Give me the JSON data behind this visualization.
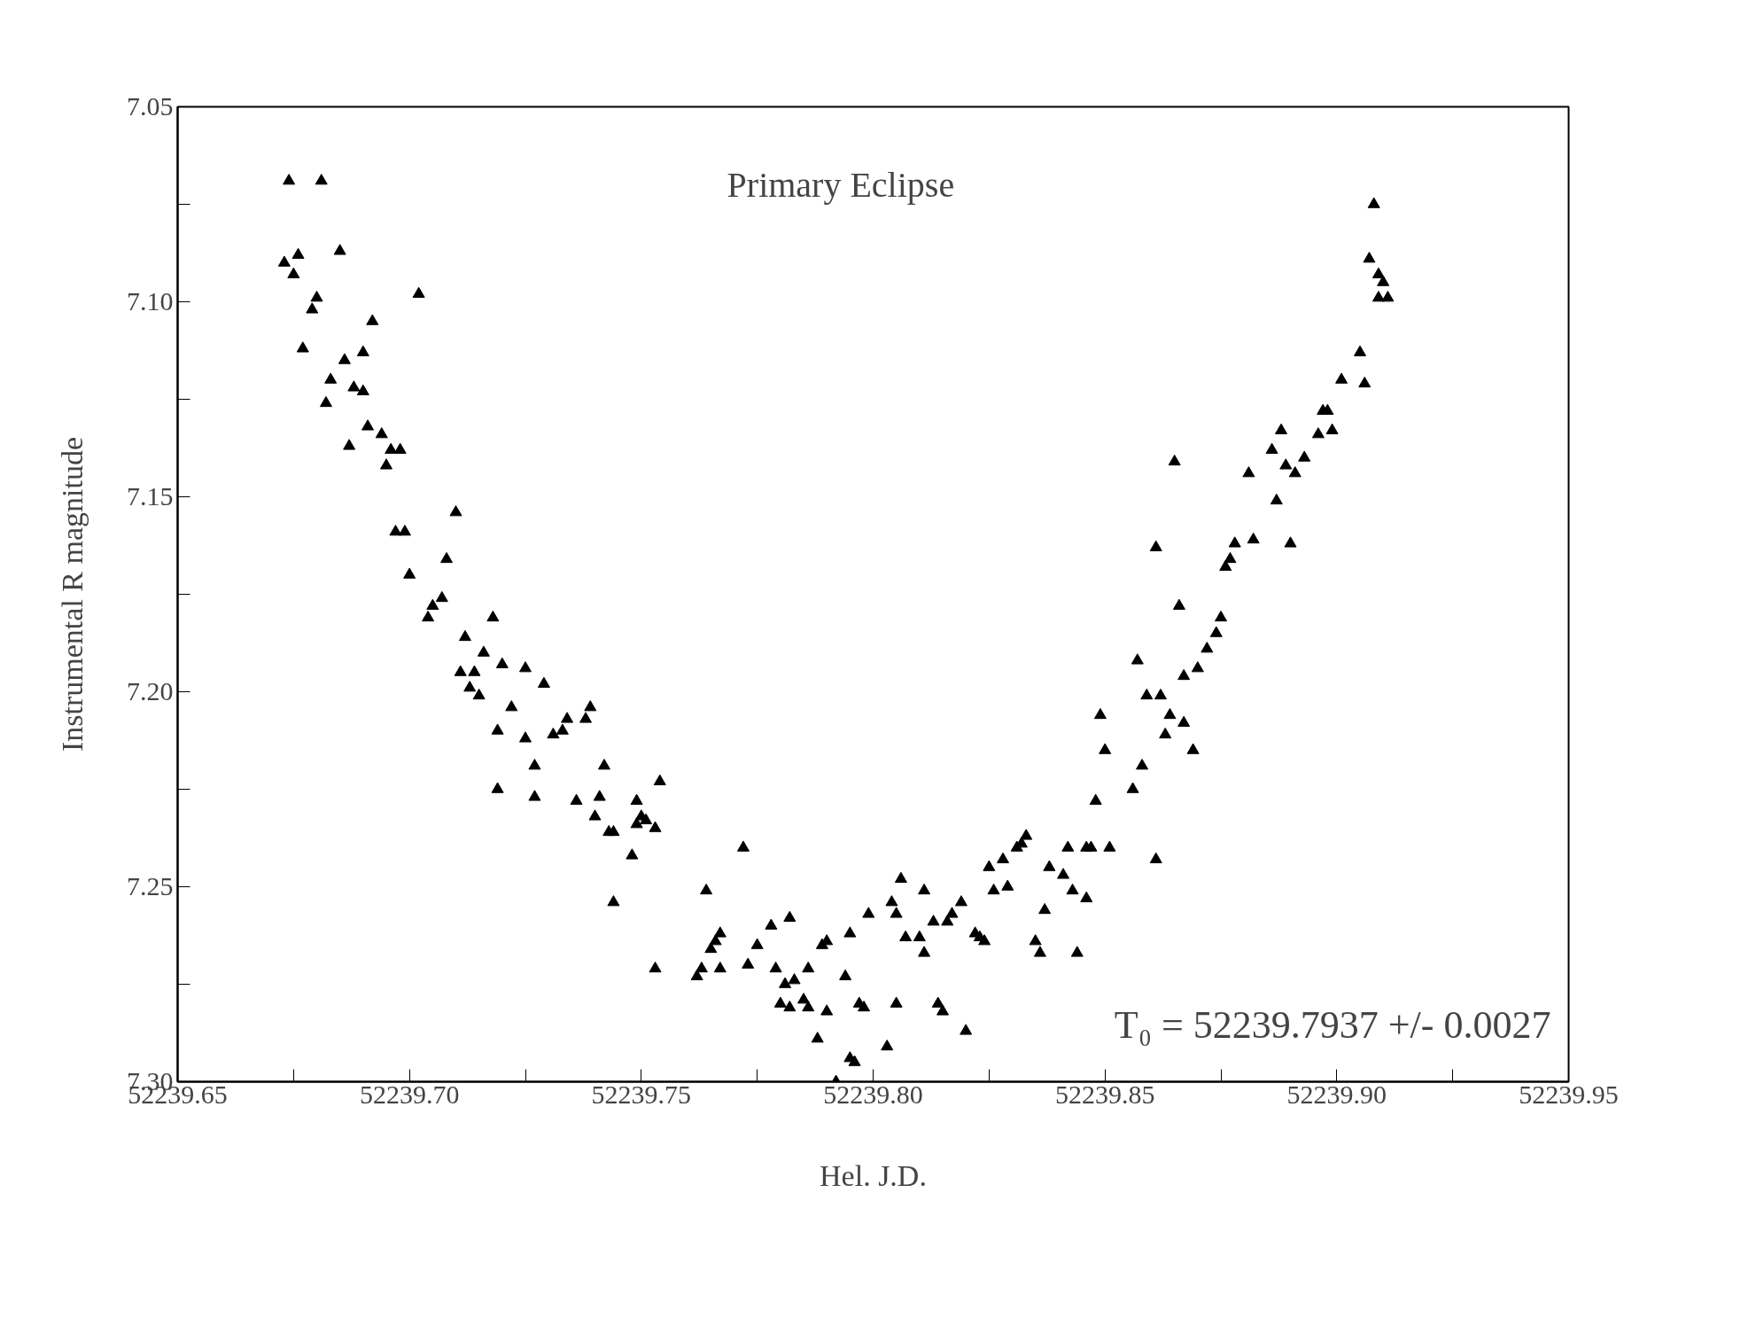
{
  "chart_data": {
    "type": "scatter",
    "title": "Primary Eclipse",
    "xlabel": "Hel. J.D.",
    "ylabel": "Instrumental R magnitude",
    "annotations": [
      "T₀ = 52239.7937 +/- 0.0027"
    ],
    "xlim": [
      52239.65,
      52239.95
    ],
    "ylim": [
      7.3,
      7.05
    ],
    "xticks": [
      {
        "value": 52239.65,
        "label": "52239.65"
      },
      {
        "value": 52239.675,
        "label": null
      },
      {
        "value": 52239.7,
        "label": "52239.70"
      },
      {
        "value": 52239.725,
        "label": null
      },
      {
        "value": 52239.75,
        "label": "52239.75"
      },
      {
        "value": 52239.775,
        "label": null
      },
      {
        "value": 52239.8,
        "label": "52239.80"
      },
      {
        "value": 52239.825,
        "label": null
      },
      {
        "value": 52239.85,
        "label": "52239.85"
      },
      {
        "value": 52239.875,
        "label": null
      },
      {
        "value": 52239.9,
        "label": "52239.90"
      },
      {
        "value": 52239.925,
        "label": null
      },
      {
        "value": 52239.95,
        "label": "52239.95"
      }
    ],
    "yticks": [
      7.05,
      {
        "value": 7.075,
        "label": null
      },
      {
        "value": 7.1,
        "label": "7.10"
      },
      {
        "value": 7.125,
        "label": null
      },
      7.15,
      {
        "value": 7.175,
        "label": null
      },
      {
        "value": 7.2,
        "label": "7.20"
      },
      {
        "value": 7.225,
        "label": null
      },
      7.25,
      {
        "value": 7.275,
        "label": null
      },
      {
        "value": 7.3,
        "label": "7.30"
      }
    ],
    "grid": false,
    "marker": "triangle",
    "series": [
      {
        "color": "#000000",
        "x": [
          52239.674,
          52239.681,
          52239.673,
          52239.675,
          52239.676,
          52239.685,
          52239.68,
          52239.679,
          52239.677,
          52239.702,
          52239.682,
          52239.683,
          52239.686,
          52239.69,
          52239.688,
          52239.69,
          52239.687,
          52239.691,
          52239.692,
          52239.694,
          52239.695,
          52239.696,
          52239.698,
          52239.697,
          52239.699,
          52239.7,
          52239.704,
          52239.705,
          52239.707,
          52239.708,
          52239.71,
          52239.711,
          52239.712,
          52239.713,
          52239.714,
          52239.715,
          52239.716,
          52239.718,
          52239.719,
          52239.72,
          52239.722,
          52239.725,
          52239.725,
          52239.727,
          52239.727,
          52239.729,
          52239.731,
          52239.733,
          52239.734,
          52239.719,
          52239.736,
          52239.738,
          52239.739,
          52239.74,
          52239.741,
          52239.742,
          52239.743,
          52239.744,
          52239.744,
          52239.748,
          52239.749,
          52239.749,
          52239.75,
          52239.751,
          52239.753,
          52239.754,
          52239.753,
          52239.762,
          52239.763,
          52239.764,
          52239.765,
          52239.766,
          52239.767,
          52239.767,
          52239.772,
          52239.773,
          52239.775,
          52239.778,
          52239.779,
          52239.78,
          52239.781,
          52239.782,
          52239.782,
          52239.783,
          52239.785,
          52239.786,
          52239.786,
          52239.788,
          52239.789,
          52239.79,
          52239.79,
          52239.792,
          52239.794,
          52239.795,
          52239.796,
          52239.795,
          52239.797,
          52239.798,
          52239.799,
          52239.803,
          52239.804,
          52239.805,
          52239.805,
          52239.806,
          52239.807,
          52239.81,
          52239.811,
          52239.811,
          52239.813,
          52239.814,
          52239.815,
          52239.816,
          52239.817,
          52239.819,
          52239.82,
          52239.822,
          52239.823,
          52239.824,
          52239.825,
          52239.826,
          52239.828,
          52239.829,
          52239.831,
          52239.832,
          52239.833,
          52239.835,
          52239.836,
          52239.837,
          52239.838,
          52239.841,
          52239.842,
          52239.843,
          52239.844,
          52239.846,
          52239.846,
          52239.847,
          52239.848,
          52239.849,
          52239.85,
          52239.851,
          52239.856,
          52239.857,
          52239.858,
          52239.859,
          52239.861,
          52239.861,
          52239.862,
          52239.863,
          52239.864,
          52239.865,
          52239.866,
          52239.867,
          52239.867,
          52239.869,
          52239.87,
          52239.872,
          52239.874,
          52239.875,
          52239.876,
          52239.877,
          52239.878,
          52239.881,
          52239.882,
          52239.886,
          52239.887,
          52239.888,
          52239.889,
          52239.89,
          52239.891,
          52239.893,
          52239.896,
          52239.897,
          52239.898,
          52239.899,
          52239.901,
          52239.905,
          52239.906,
          52239.907,
          52239.908,
          52239.909,
          52239.909,
          52239.91,
          52239.911
        ],
        "values": [
          7.069,
          7.069,
          7.09,
          7.093,
          7.088,
          7.087,
          7.099,
          7.102,
          7.112,
          7.098,
          7.126,
          7.12,
          7.115,
          7.113,
          7.122,
          7.123,
          7.137,
          7.132,
          7.105,
          7.134,
          7.142,
          7.138,
          7.138,
          7.159,
          7.159,
          7.17,
          7.181,
          7.178,
          7.176,
          7.166,
          7.154,
          7.195,
          7.186,
          7.199,
          7.195,
          7.201,
          7.19,
          7.181,
          7.21,
          7.193,
          7.204,
          7.212,
          7.194,
          7.219,
          7.227,
          7.198,
          7.211,
          7.21,
          7.207,
          7.225,
          7.228,
          7.207,
          7.204,
          7.232,
          7.227,
          7.219,
          7.236,
          7.236,
          7.254,
          7.242,
          7.234,
          7.228,
          7.232,
          7.233,
          7.235,
          7.223,
          7.271,
          7.273,
          7.271,
          7.251,
          7.266,
          7.264,
          7.262,
          7.271,
          7.24,
          7.27,
          7.265,
          7.26,
          7.271,
          7.28,
          7.275,
          7.281,
          7.258,
          7.274,
          7.279,
          7.281,
          7.271,
          7.289,
          7.265,
          7.282,
          7.264,
          7.3,
          7.273,
          7.294,
          7.295,
          7.262,
          7.28,
          7.281,
          7.257,
          7.291,
          7.254,
          7.28,
          7.257,
          7.248,
          7.263,
          7.263,
          7.251,
          7.267,
          7.259,
          7.28,
          7.282,
          7.259,
          7.257,
          7.254,
          7.287,
          7.262,
          7.263,
          7.264,
          7.245,
          7.251,
          7.243,
          7.25,
          7.24,
          7.239,
          7.237,
          7.264,
          7.267,
          7.256,
          7.245,
          7.247,
          7.24,
          7.251,
          7.267,
          7.24,
          7.253,
          7.24,
          7.228,
          7.206,
          7.215,
          7.24,
          7.225,
          7.192,
          7.219,
          7.201,
          7.163,
          7.243,
          7.201,
          7.211,
          7.206,
          7.141,
          7.178,
          7.208,
          7.196,
          7.215,
          7.194,
          7.189,
          7.185,
          7.181,
          7.168,
          7.166,
          7.162,
          7.144,
          7.161,
          7.138,
          7.151,
          7.133,
          7.142,
          7.162,
          7.144,
          7.14,
          7.134,
          7.128,
          7.128,
          7.133,
          7.12,
          7.113,
          7.121,
          7.089,
          7.075,
          7.093,
          7.099,
          7.095,
          7.099
        ]
      }
    ]
  }
}
